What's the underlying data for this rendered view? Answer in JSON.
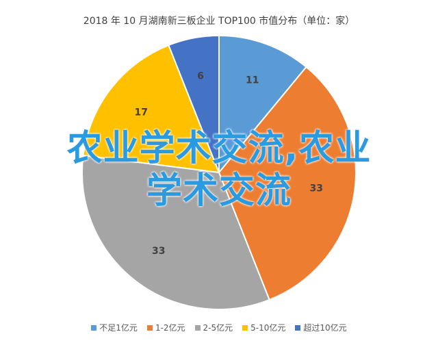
{
  "chart_data": {
    "type": "pie",
    "title": "2018 年 10 月湖南新三板企业 TOP100 市值分布（单位：家）",
    "categories": [
      "不足1亿元",
      "1-2亿元",
      "2-5亿元",
      "5-10亿元",
      "超过10亿元"
    ],
    "values": [
      11,
      33,
      33,
      17,
      6
    ],
    "colors": [
      "#5b9bd5",
      "#ed7d31",
      "#a5a5a5",
      "#ffc000",
      "#4472c4"
    ],
    "legend_position": "bottom",
    "start_angle_deg": 0,
    "direction": "clockwise"
  },
  "overlay": {
    "line1": "农业学术交流,农业",
    "line2": "学术交流"
  }
}
